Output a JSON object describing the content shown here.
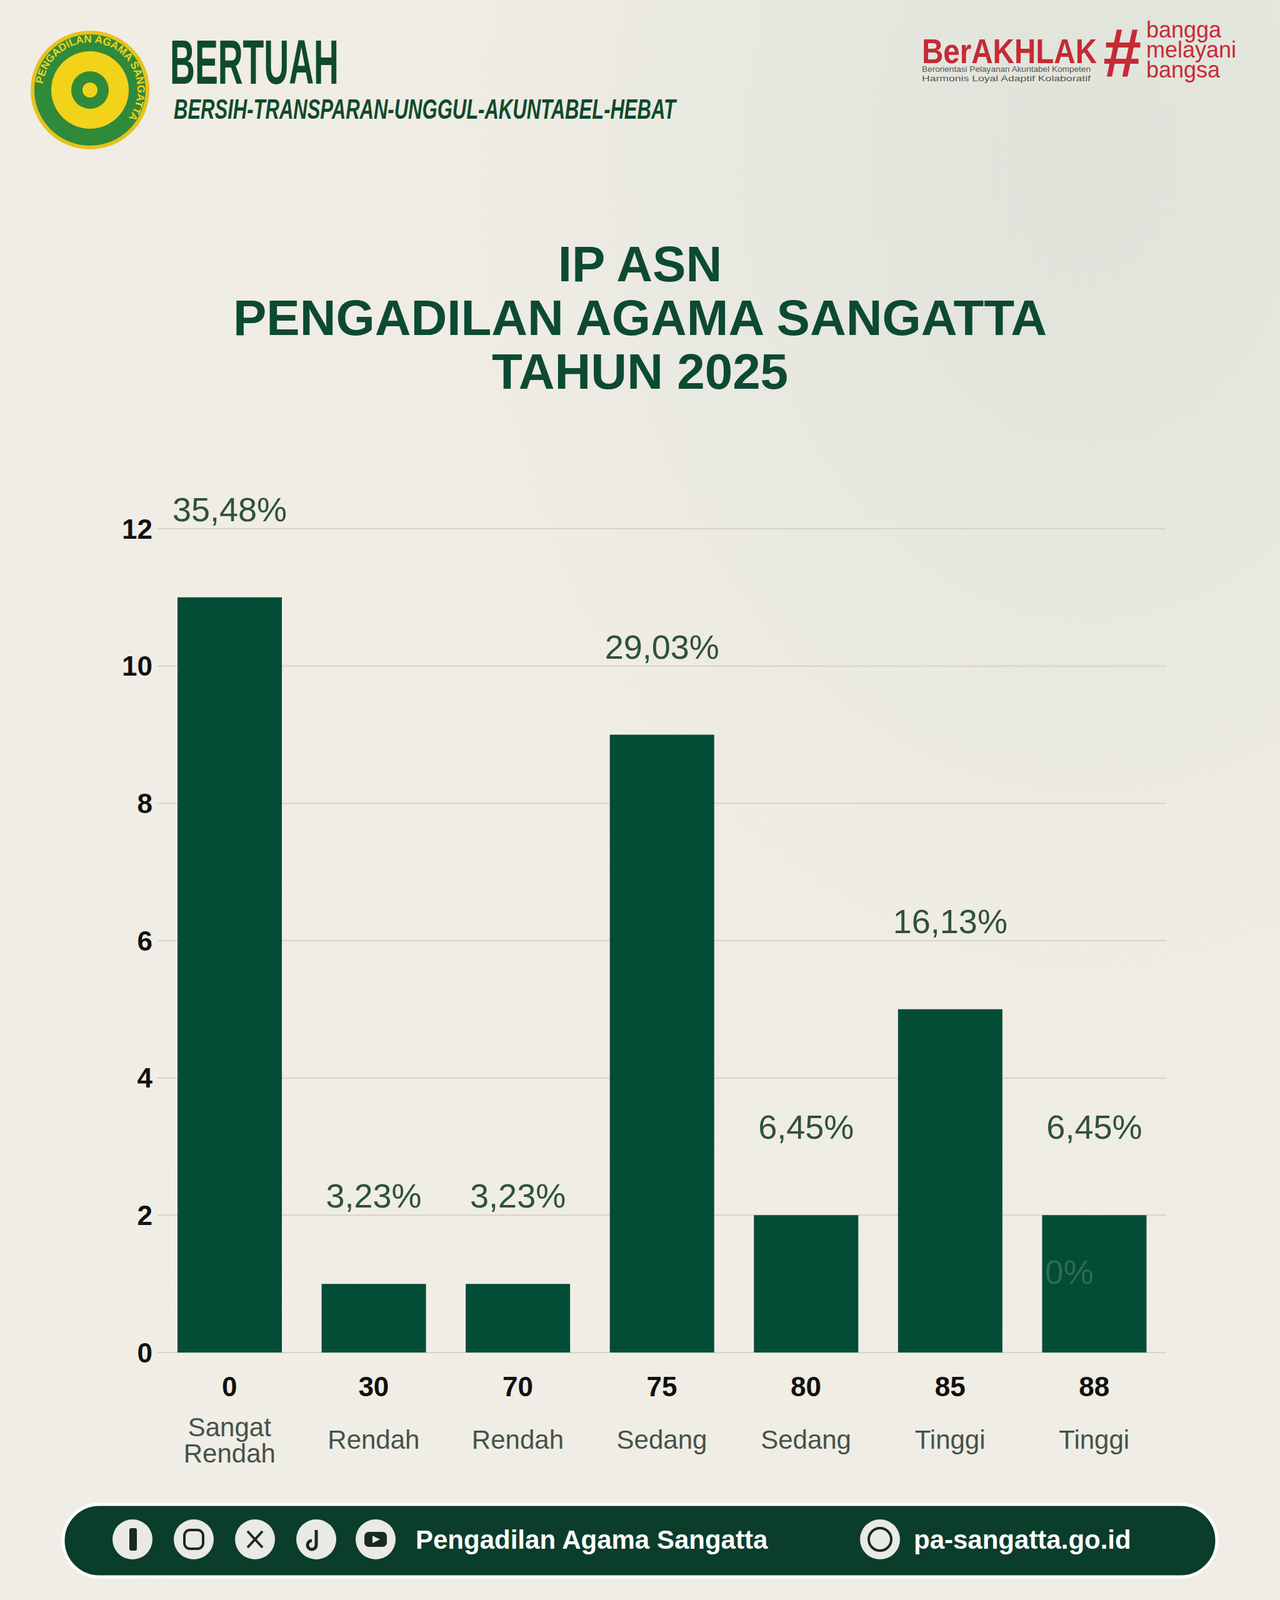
{
  "header": {
    "logo_text": "PENGADILAN AGAMA SANGATTA",
    "title": "BERTUAH",
    "tagline": "BERSIH-TRANSPARAN-UNGGUL-AKUNTABEL-HEBAT",
    "badge": "BerAKHLAK",
    "badge_subtitle": [
      "Berorientasi Pelayanan Akuntabel Kompeten",
      "Harmonis Loyal Adaptif Kolaboratif"
    ],
    "hashtag": "#",
    "slogan": [
      "bangga",
      "melayani",
      "bangsa"
    ]
  },
  "chart_data": {
    "type": "bar",
    "title": [
      "IP ASN",
      "PENGADILAN AGAMA SANGATTA",
      "TAHUN 2025"
    ],
    "categories": [
      "0",
      "30",
      "70",
      "75",
      "80",
      "85",
      "88"
    ],
    "levels": [
      "Sangat Rendah",
      "Rendah",
      "Rendah",
      "Sedang",
      "Sedang",
      "Tinggi",
      "Tinggi"
    ],
    "values": [
      11,
      1,
      1,
      9,
      2,
      5,
      2
    ],
    "percent_labels": [
      "35,48%",
      "3,23%",
      "3,23%",
      "29,03%",
      "6,45%",
      "16,13%",
      "6,45%"
    ],
    "color": "#034d37",
    "ylim": [
      0,
      12
    ],
    "yticks": [
      0,
      2,
      4,
      6,
      8,
      10,
      12
    ],
    "grid": true,
    "annotations": [
      {
        "text": "0%",
        "category": "88"
      }
    ]
  },
  "footer": {
    "name": "Pengadilan Agama Sangatta",
    "website": "pa-sangatta.go.id"
  }
}
